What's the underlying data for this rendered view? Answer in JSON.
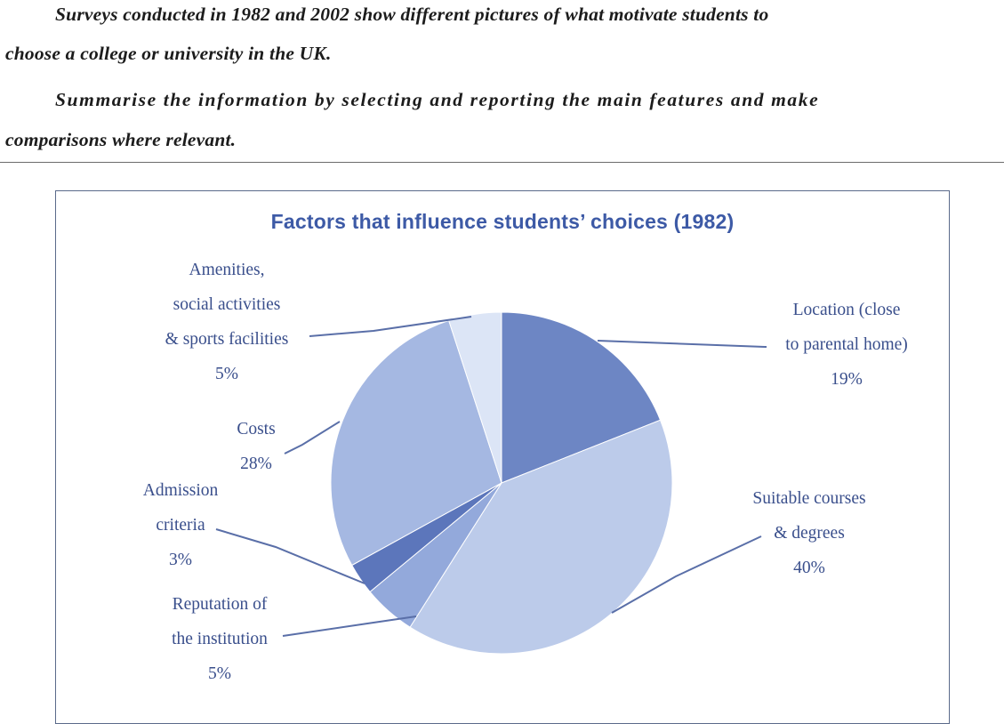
{
  "prompt": {
    "line1a": "Surveys conducted in 1982 and 2002 show different pictures of what motivate students to",
    "line1b": "choose a college or university in the UK.",
    "line2a": "Summarise the information by selecting and reporting the main features and make",
    "line2b": "comparisons where relevant."
  },
  "chart_data": {
    "type": "pie",
    "title": "Factors that influence students’ choices (1982)",
    "slices": [
      {
        "label_lines": [
          "Location (close",
          "to parental home)"
        ],
        "value": 19,
        "value_label": "19%",
        "color": "#6d86c4"
      },
      {
        "label_lines": [
          "Suitable courses",
          "& degrees"
        ],
        "value": 40,
        "value_label": "40%",
        "color": "#bccbea"
      },
      {
        "label_lines": [
          "Reputation of",
          "the institution"
        ],
        "value": 5,
        "value_label": "5%",
        "color": "#93a9db"
      },
      {
        "label_lines": [
          "Admission",
          "criteria"
        ],
        "value": 3,
        "value_label": "3%",
        "color": "#5c76bb"
      },
      {
        "label_lines": [
          "Costs"
        ],
        "value": 28,
        "value_label": "28%",
        "color": "#a5b8e2"
      },
      {
        "label_lines": [
          "Amenities,",
          "social activities",
          "& sports facilities"
        ],
        "value": 5,
        "value_label": "5%",
        "color": "#dce5f6"
      }
    ],
    "start_angle_deg": 0,
    "direction": "clockwise"
  },
  "colors": {
    "title": "#3d5aa6",
    "label_text": "#3a4f8c",
    "leader_line": "#5a6fa8",
    "frame": "#5a6a8a",
    "prompt_text": "#1c1c1c"
  }
}
